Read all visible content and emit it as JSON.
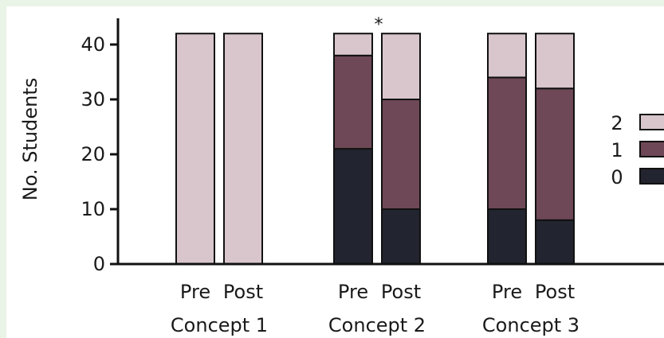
{
  "chart_data": {
    "type": "bar",
    "stacked": true,
    "ylabel": "No. Students",
    "ylim": [
      0,
      45
    ],
    "yticks": [
      0,
      10,
      20,
      30,
      40
    ],
    "groups": [
      {
        "label": "Concept 1",
        "bars": [
          {
            "label": "Pre",
            "values": {
              "0": 0,
              "1": 0,
              "2": 42
            }
          },
          {
            "label": "Post",
            "values": {
              "0": 0,
              "1": 0,
              "2": 42
            }
          }
        ]
      },
      {
        "label": "Concept 2",
        "annotation": "*",
        "bars": [
          {
            "label": "Pre",
            "values": {
              "0": 21,
              "1": 17,
              "2": 4
            }
          },
          {
            "label": "Post",
            "values": {
              "0": 10,
              "1": 20,
              "2": 12
            }
          }
        ]
      },
      {
        "label": "Concept 3",
        "bars": [
          {
            "label": "Pre",
            "values": {
              "0": 10,
              "1": 24,
              "2": 8
            }
          },
          {
            "label": "Post",
            "values": {
              "0": 8,
              "1": 24,
              "2": 10
            }
          }
        ]
      }
    ],
    "legend": {
      "placement": "right",
      "entries": [
        {
          "key": "2",
          "label": "2",
          "color": "#d8c6cc"
        },
        {
          "key": "1",
          "label": "1",
          "color": "#6e4856"
        },
        {
          "key": "0",
          "label": "0",
          "color": "#22252f"
        }
      ]
    }
  }
}
